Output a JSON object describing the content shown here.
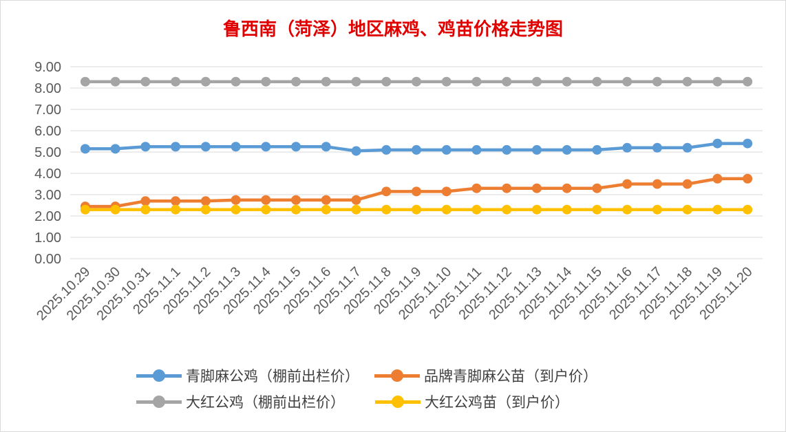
{
  "chart_data": {
    "type": "line",
    "title": "鲁西南（菏泽）地区麻鸡、鸡苗价格走势图",
    "xlabel": "",
    "ylabel": "",
    "ylim": [
      0,
      9
    ],
    "ytick_labels": [
      "0.00",
      "1.00",
      "2.00",
      "3.00",
      "4.00",
      "5.00",
      "6.00",
      "7.00",
      "8.00",
      "9.00"
    ],
    "grid": "horizontal",
    "legend_position": "bottom",
    "categories": [
      "2025.10.29",
      "2025.10.30",
      "2025.10.31",
      "2025.11.1",
      "2025.11.2",
      "2025.11.3",
      "2025.11.4",
      "2025.11.5",
      "2025.11.6",
      "2025.11.7",
      "2025.11.8",
      "2025.11.9",
      "2025.11.10",
      "2025.11.11",
      "2025.11.12",
      "2025.11.13",
      "2025.11.14",
      "2025.11.15",
      "2025.11.16",
      "2025.11.17",
      "2025.11.18",
      "2025.11.19",
      "2025.11.20"
    ],
    "series": [
      {
        "name": "青脚麻公鸡（棚前出栏价）",
        "color": "#5b9bd5",
        "values": [
          5.15,
          5.15,
          5.25,
          5.25,
          5.25,
          5.25,
          5.25,
          5.25,
          5.25,
          5.05,
          5.1,
          5.1,
          5.1,
          5.1,
          5.1,
          5.1,
          5.1,
          5.1,
          5.2,
          5.2,
          5.2,
          5.4,
          5.4
        ]
      },
      {
        "name": "品牌青脚麻公苗（到户价）",
        "color": "#ed7d31",
        "values": [
          2.45,
          2.45,
          2.7,
          2.7,
          2.7,
          2.75,
          2.75,
          2.75,
          2.75,
          2.75,
          3.15,
          3.15,
          3.15,
          3.3,
          3.3,
          3.3,
          3.3,
          3.3,
          3.5,
          3.5,
          3.5,
          3.75,
          3.75
        ]
      },
      {
        "name": "大红公鸡（棚前出栏价）",
        "color": "#a5a5a5",
        "values": [
          8.3,
          8.3,
          8.3,
          8.3,
          8.3,
          8.3,
          8.3,
          8.3,
          8.3,
          8.3,
          8.3,
          8.3,
          8.3,
          8.3,
          8.3,
          8.3,
          8.3,
          8.3,
          8.3,
          8.3,
          8.3,
          8.3,
          8.3
        ]
      },
      {
        "name": "大红公鸡苗（到户价）",
        "color": "#ffc000",
        "values": [
          2.3,
          2.3,
          2.3,
          2.3,
          2.3,
          2.3,
          2.3,
          2.3,
          2.3,
          2.3,
          2.3,
          2.3,
          2.3,
          2.3,
          2.3,
          2.3,
          2.3,
          2.3,
          2.3,
          2.3,
          2.3,
          2.3,
          2.3
        ]
      }
    ]
  }
}
